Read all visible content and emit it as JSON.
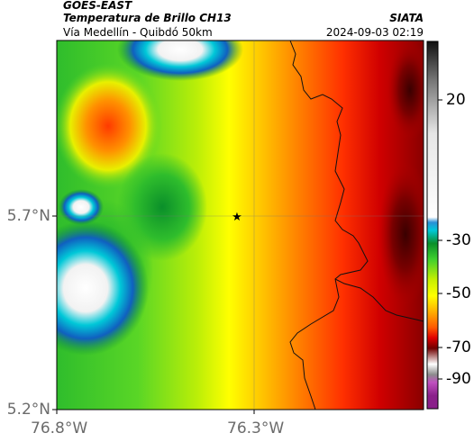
{
  "header": {
    "satellite": "GOES-EAST",
    "product": "Temperatura de Brillo CH13",
    "location": "Vía Medellín - Quibdó 50km",
    "organization": "SIATA",
    "timestamp": "2024-09-03 02:19"
  },
  "axes": {
    "y_ticks": [
      "5.7°N",
      "5.2°N"
    ],
    "x_ticks": [
      "76.8°W",
      "76.3°W"
    ]
  },
  "colorbar": {
    "ticks": [
      "20",
      "-30",
      "-50",
      "-70",
      "-90"
    ],
    "stops": [
      {
        "value": 45,
        "color": "#111111"
      },
      {
        "value": 30,
        "color": "#777777"
      },
      {
        "value": 10,
        "color": "#e6e6e6"
      },
      {
        "value": -22,
        "color": "#ffffff"
      },
      {
        "value": -24,
        "color": "#2a8fd6"
      },
      {
        "value": -27,
        "color": "#00c8d8"
      },
      {
        "value": -32,
        "color": "#0a8f2a"
      },
      {
        "value": -38,
        "color": "#3ecf2d"
      },
      {
        "value": -46,
        "color": "#c8f000"
      },
      {
        "value": -52,
        "color": "#ffff00"
      },
      {
        "value": -58,
        "color": "#ffb000"
      },
      {
        "value": -64,
        "color": "#ff5a00"
      },
      {
        "value": -68,
        "color": "#e00000"
      },
      {
        "value": -72,
        "color": "#700000"
      },
      {
        "value": -78,
        "color": "#ffffff"
      },
      {
        "value": -82,
        "color": "#8c8c8c"
      },
      {
        "value": -85,
        "color": "#c050c0"
      },
      {
        "value": -90,
        "color": "#8a208a"
      }
    ]
  },
  "marker": {
    "name": "station-star",
    "symbol": "★"
  }
}
